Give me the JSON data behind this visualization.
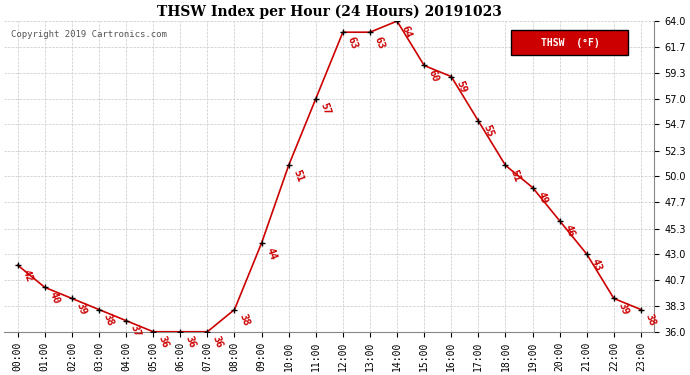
{
  "title": "THSW Index per Hour (24 Hours) 20191023",
  "copyright": "Copyright 2019 Cartronics.com",
  "legend_label": "THSW  (°F)",
  "data_points": [
    [
      0,
      42
    ],
    [
      1,
      40
    ],
    [
      2,
      39
    ],
    [
      3,
      38
    ],
    [
      4,
      37
    ],
    [
      5,
      36
    ],
    [
      6,
      36
    ],
    [
      7,
      36
    ],
    [
      8,
      38
    ],
    [
      9,
      44
    ],
    [
      10,
      51
    ],
    [
      11,
      57
    ],
    [
      12,
      63
    ],
    [
      13,
      63
    ],
    [
      14,
      64
    ],
    [
      15,
      60
    ],
    [
      16,
      59
    ],
    [
      17,
      55
    ],
    [
      18,
      51
    ],
    [
      19,
      49
    ],
    [
      20,
      46
    ],
    [
      21,
      43
    ],
    [
      22,
      39
    ],
    [
      23,
      38
    ]
  ],
  "ylim": [
    36.0,
    64.0
  ],
  "yticks": [
    36.0,
    38.3,
    40.7,
    43.0,
    45.3,
    47.7,
    50.0,
    52.3,
    54.7,
    57.0,
    59.3,
    61.7,
    64.0
  ],
  "line_color": "#cc0000",
  "marker_color": "#000000",
  "bg_color": "#ffffff",
  "grid_color": "#c8c8c8",
  "title_fontsize": 10,
  "annotation_fontsize": 7.5,
  "tick_fontsize": 7,
  "copyright_fontsize": 6.5
}
